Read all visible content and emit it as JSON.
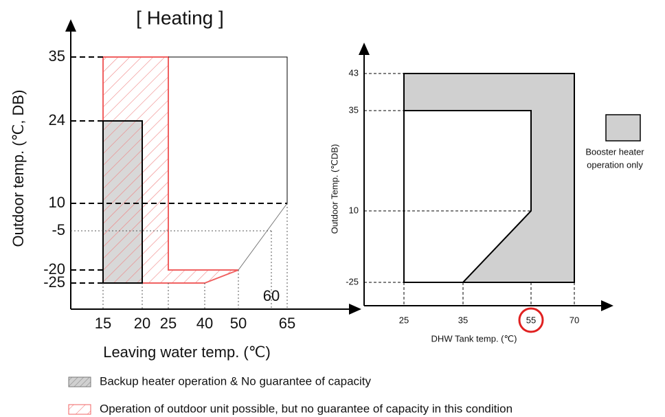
{
  "left": {
    "title": "[ Heating ]",
    "y_label": "Outdoor temp. (℃, DB)",
    "x_label": "Leaving water temp. (℃)",
    "yticks": [
      "35",
      "24",
      "10",
      "-5",
      "-20",
      "-25"
    ],
    "xticks": [
      "15",
      "20",
      "25",
      "40",
      "50",
      "65"
    ],
    "annotation": "60"
  },
  "right": {
    "y_label": "Outdoor Temp. (℃DB)",
    "x_label": "DHW Tank temp. (℃)",
    "yticks": [
      "43",
      "35",
      "10",
      "-25"
    ],
    "xticks": [
      "25",
      "35",
      "55",
      "70"
    ],
    "legend": [
      "Booster heater",
      "operation only"
    ]
  },
  "legend": [
    "Backup heater operation & No guarantee of capacity",
    "Operation of outdoor unit possible, but no guarantee of capacity in this condition"
  ]
}
